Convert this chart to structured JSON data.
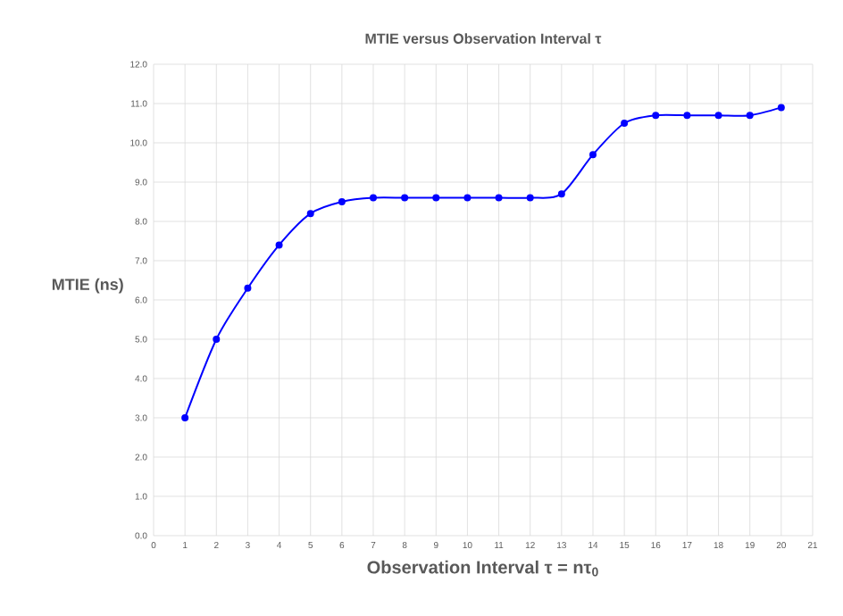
{
  "chart_data": {
    "type": "line",
    "title": "MTIE versus Observation Interval τ",
    "xlabel": "Observation Interval τ = nτ$_{0}$",
    "ylabel": "MTIE (ns)",
    "x": [
      1,
      2,
      3,
      4,
      5,
      6,
      7,
      8,
      9,
      10,
      11,
      12,
      13,
      14,
      15,
      16,
      17,
      18,
      19,
      20
    ],
    "series": [
      {
        "color": "#0000ff",
        "values": [
          3.0,
          5.0,
          6.3,
          7.4,
          8.2,
          8.5,
          8.6,
          8.6,
          8.6,
          8.6,
          8.6,
          8.6,
          8.7,
          9.7,
          10.5,
          10.7,
          10.7,
          10.7,
          10.7,
          10.9
        ]
      }
    ],
    "xlim": [
      0,
      21
    ],
    "xticks": [
      0,
      1,
      2,
      3,
      4,
      5,
      6,
      7,
      8,
      9,
      10,
      11,
      12,
      13,
      14,
      15,
      16,
      17,
      18,
      19,
      20,
      21
    ],
    "ylim": [
      0,
      12
    ],
    "yticks": [
      {
        "value": 0,
        "label": "0.0"
      },
      {
        "value": 1,
        "label": "1.0"
      },
      {
        "value": 2,
        "label": "2.0"
      },
      {
        "value": 3,
        "label": "3.0"
      },
      {
        "value": 4,
        "label": "4.0"
      },
      {
        "value": 5,
        "label": "5.0"
      },
      {
        "value": 6,
        "label": "6.0"
      },
      {
        "value": 7,
        "label": "7.0"
      },
      {
        "value": 8,
        "label": "8.0"
      },
      {
        "value": 9,
        "label": "9.0"
      },
      {
        "value": 10,
        "label": "10.0"
      },
      {
        "value": 11,
        "label": "11.0"
      },
      {
        "value": 12,
        "label": "12.0"
      }
    ],
    "grid": true,
    "marker": "circle",
    "line_style": "solid"
  }
}
